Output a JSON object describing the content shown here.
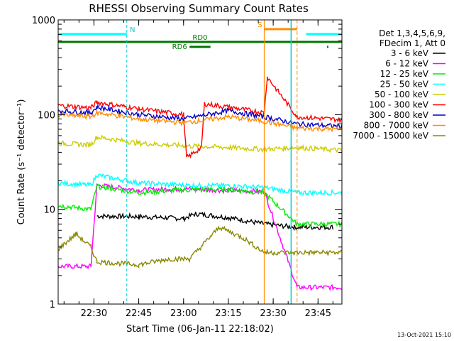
{
  "chart_data": {
    "type": "line",
    "title": "RHESSI Observing Summary Count Rates",
    "xlabel": "Start Time (06-Jan-11 22:18:02)",
    "ylabel": "Count Rate (s⁻¹ detector⁻¹)",
    "y_scale": "log",
    "ylim": [
      1,
      1000
    ],
    "xlim": [
      "22:18:02",
      "23:53:00"
    ],
    "x_ticks": [
      "22:30",
      "22:45",
      "23:00",
      "23:15",
      "23:30",
      "23:45"
    ],
    "y_ticks": [
      "1",
      "10",
      "100",
      "1000"
    ],
    "legend_position": "right",
    "legend_header": [
      "Det 1,3,4,5,6,9,",
      "FDecim 1, Att 0"
    ],
    "footer_date": "13-Oct-2021 15:10",
    "flags": [
      {
        "label": "N",
        "color": "#00ffff",
        "segments": [
          [
            "22:18",
            "22:41"
          ],
          [
            "23:41",
            "23:53"
          ]
        ]
      },
      {
        "label": "S",
        "color": "#ff8c00",
        "segments": [
          [
            "23:27",
            "23:38"
          ]
        ]
      },
      {
        "label": "RD0",
        "color": "#007700",
        "segments": [
          [
            "22:18",
            "23:53"
          ]
        ]
      },
      {
        "label": "RD6",
        "color": "#007700",
        "segments": [
          [
            "23:02",
            "23:09"
          ],
          [
            "23:48",
            "23:48"
          ]
        ]
      }
    ],
    "series": [
      {
        "name": "3 - 6 keV",
        "color": "#000000",
        "points": [
          [
            "22:31",
            8.5
          ],
          [
            "22:45",
            8.4
          ],
          [
            "23:00",
            8.0
          ],
          [
            "23:04",
            9.0
          ],
          [
            "23:15",
            8.2
          ],
          [
            "23:27",
            7.0
          ],
          [
            "23:37",
            6.5
          ],
          [
            "23:50",
            6.5
          ]
        ]
      },
      {
        "name": "6 - 12 keV",
        "color": "#ff00ff",
        "points": [
          [
            "22:18",
            2.5
          ],
          [
            "22:29",
            2.5
          ],
          [
            "22:31",
            18.0
          ],
          [
            "22:45",
            16.0
          ],
          [
            "23:00",
            16.5
          ],
          [
            "23:15",
            15.8
          ],
          [
            "23:27",
            15.5
          ],
          [
            "23:38",
            1.5
          ],
          [
            "23:53",
            1.5
          ]
        ]
      },
      {
        "name": "12 - 25 keV",
        "color": "#00ee00",
        "points": [
          [
            "22:18",
            11.0
          ],
          [
            "22:29",
            10.0
          ],
          [
            "22:31",
            17.5
          ],
          [
            "22:45",
            15.0
          ],
          [
            "23:00",
            16.0
          ],
          [
            "23:15",
            16.2
          ],
          [
            "23:27",
            15.0
          ],
          [
            "23:38",
            7.0
          ],
          [
            "23:53",
            7.0
          ]
        ]
      },
      {
        "name": "25 - 50 keV",
        "color": "#00ffff",
        "points": [
          [
            "22:18",
            19.0
          ],
          [
            "22:29",
            18.0
          ],
          [
            "22:31",
            23.0
          ],
          [
            "22:45",
            19.0
          ],
          [
            "23:00",
            18.0
          ],
          [
            "23:15",
            17.8
          ],
          [
            "23:27",
            17.0
          ],
          [
            "23:38",
            15.0
          ],
          [
            "23:53",
            15.0
          ]
        ]
      },
      {
        "name": "50 - 100 keV",
        "color": "#cccc00",
        "points": [
          [
            "22:18",
            50.0
          ],
          [
            "22:29",
            48.0
          ],
          [
            "22:31",
            58.0
          ],
          [
            "22:45",
            50.0
          ],
          [
            "23:00",
            47.0
          ],
          [
            "23:15",
            45.0
          ],
          [
            "23:27",
            43.0
          ],
          [
            "23:38",
            45.0
          ],
          [
            "23:53",
            42.0
          ]
        ]
      },
      {
        "name": "100 - 300 keV",
        "color": "#ff0000",
        "points": [
          [
            "22:18",
            125.0
          ],
          [
            "22:29",
            118.0
          ],
          [
            "22:31",
            135.0
          ],
          [
            "22:45",
            115.0
          ],
          [
            "23:00",
            100.0
          ],
          [
            "23:01",
            35.0
          ],
          [
            "23:06",
            45.0
          ],
          [
            "23:07",
            130.0
          ],
          [
            "23:15",
            120.0
          ],
          [
            "23:27",
            105.0
          ],
          [
            "23:28",
            250.0
          ],
          [
            "23:38",
            95.0
          ],
          [
            "23:53",
            88.0
          ]
        ]
      },
      {
        "name": "300 - 800 keV",
        "color": "#0000cc",
        "points": [
          [
            "22:18",
            110.0
          ],
          [
            "22:29",
            105.0
          ],
          [
            "22:31",
            120.0
          ],
          [
            "22:45",
            100.0
          ],
          [
            "23:00",
            90.0
          ],
          [
            "23:15",
            110.0
          ],
          [
            "23:27",
            95.0
          ],
          [
            "23:38",
            80.0
          ],
          [
            "23:53",
            75.0
          ]
        ]
      },
      {
        "name": "800 - 7000 keV",
        "color": "#ff8c00",
        "points": [
          [
            "22:18",
            100.0
          ],
          [
            "22:29",
            95.0
          ],
          [
            "22:31",
            105.0
          ],
          [
            "22:45",
            90.0
          ],
          [
            "23:00",
            82.0
          ],
          [
            "23:15",
            95.0
          ],
          [
            "23:27",
            85.0
          ],
          [
            "23:38",
            72.0
          ],
          [
            "23:53",
            70.0
          ]
        ]
      },
      {
        "name": "7000 - 15000 keV",
        "color": "#888800",
        "points": [
          [
            "22:18",
            3.8
          ],
          [
            "22:24",
            5.5
          ],
          [
            "22:29",
            4.0
          ],
          [
            "22:31",
            2.8
          ],
          [
            "22:45",
            2.6
          ],
          [
            "22:55",
            3.0
          ],
          [
            "23:02",
            3.0
          ],
          [
            "23:12",
            6.5
          ],
          [
            "23:20",
            5.0
          ],
          [
            "23:27",
            3.5
          ],
          [
            "23:38",
            3.5
          ],
          [
            "23:53",
            3.5
          ]
        ]
      }
    ]
  }
}
